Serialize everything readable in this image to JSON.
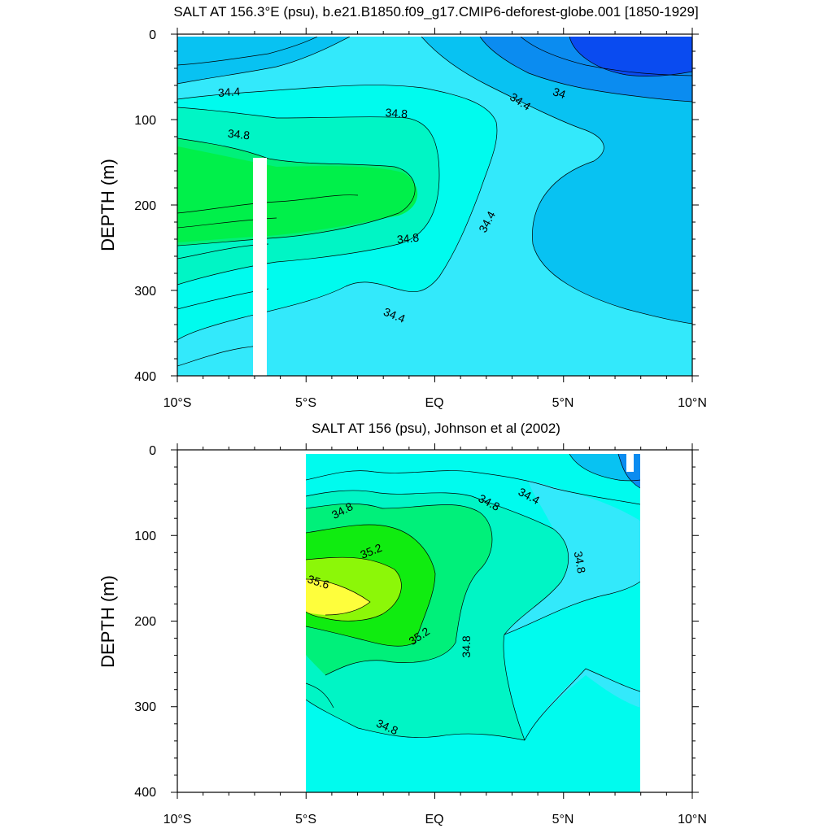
{
  "chart_data": [
    {
      "type": "contour",
      "title": "SALT AT 156.3°E (psu), b.e21.B1850.f09_g17.CMIP6-deforest-globe.001 [1850-1929]",
      "ylabel": "DEPTH (m)",
      "xlabel": "",
      "xlim": [
        -10,
        10
      ],
      "ylim": [
        400,
        0
      ],
      "xticks": [
        -10,
        -5,
        0,
        5,
        10
      ],
      "xtick_labels": [
        "10°S",
        "5°S",
        "EQ",
        "5°N",
        "10°N"
      ],
      "yticks": [
        0,
        100,
        200,
        300,
        400
      ],
      "ytick_labels": [
        "0",
        "100",
        "200",
        "300",
        "400"
      ],
      "contour_interval": 0.2,
      "contour_labels": [
        "34.4",
        "34.8",
        "34.8",
        "34.8",
        "34.4",
        "34",
        "34.4",
        "34.4"
      ],
      "masked_column": {
        "lon": -7.1,
        "depth_range": [
          145,
          400
        ]
      },
      "levels": [
        {
          "label": "<34.0",
          "color": "#0a4bf0"
        },
        {
          "label": "34.0-34.2",
          "color": "#0b8cf0"
        },
        {
          "label": "34.2-34.4",
          "color": "#08c2f2"
        },
        {
          "label": "34.4-34.6",
          "color": "#33e9fb"
        },
        {
          "label": "34.6-34.8",
          "color": "#00fbee"
        },
        {
          "label": "34.8-35.0",
          "color": "#00f5c5"
        },
        {
          "label": "35.0-35.2",
          "color": "#00f07a"
        }
      ]
    },
    {
      "type": "contour",
      "title": "SALT AT 156 (psu), Johnson et al (2002)",
      "ylabel": "DEPTH (m)",
      "xlabel": "",
      "xlim": [
        -10,
        10
      ],
      "ylim": [
        400,
        0
      ],
      "data_lon_range": [
        -5,
        8
      ],
      "xticks": [
        -10,
        -5,
        0,
        5,
        10
      ],
      "xtick_labels": [
        "10°S",
        "5°S",
        "EQ",
        "5°N",
        "10°N"
      ],
      "yticks": [
        0,
        100,
        200,
        300,
        400
      ],
      "ytick_labels": [
        "0",
        "100",
        "200",
        "300",
        "400"
      ],
      "contour_interval": 0.2,
      "contour_labels": [
        "34.8",
        "34.8",
        "34.4",
        "35.2",
        "34.8",
        "35.6",
        "35.2",
        "34.8",
        "34.8"
      ],
      "levels": [
        {
          "label": "34.0-34.2",
          "color": "#0b8cf0"
        },
        {
          "label": "34.2-34.4",
          "color": "#08c2f2"
        },
        {
          "label": "34.4-34.6",
          "color": "#33e9fb"
        },
        {
          "label": "34.6-34.8",
          "color": "#00fbee"
        },
        {
          "label": "34.8-35.0",
          "color": "#00f5c5"
        },
        {
          "label": "35.0-35.2",
          "color": "#00f07a"
        },
        {
          "label": "35.2-35.4",
          "color": "#10ec10"
        },
        {
          "label": "35.4-35.6",
          "color": "#8cf708"
        },
        {
          "label": ">35.6",
          "color": "#fefe3c"
        }
      ]
    }
  ]
}
